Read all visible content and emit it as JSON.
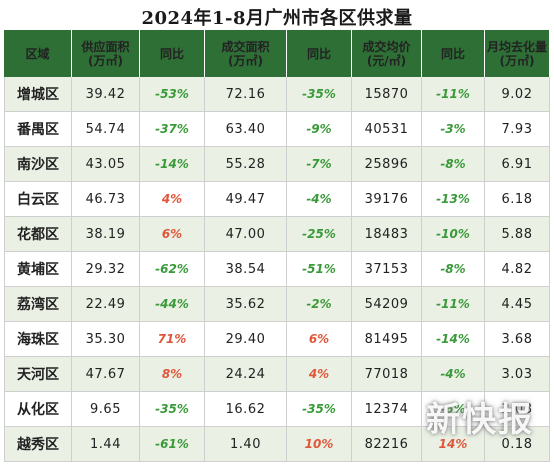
{
  "title": "2024年1-8月广州市各区供求量",
  "headers": [
    "区域",
    "供应面积\n(万㎡)",
    "同比",
    "成交面积\n(万㎡)",
    "同比",
    "成交均价\n(元/㎡)",
    "同比",
    "月均去化量\n(万㎡)"
  ],
  "rows": [
    {
      "district": "增城区",
      "supply": "39.42",
      "supply_yoy": "-53%",
      "deal": "72.16",
      "deal_yoy": "-35%",
      "price": "15870",
      "price_yoy": "-11%",
      "absorb": "9.02"
    },
    {
      "district": "番禺区",
      "supply": "54.74",
      "supply_yoy": "-37%",
      "deal": "63.40",
      "deal_yoy": "-9%",
      "price": "40531",
      "price_yoy": "-3%",
      "absorb": "7.93"
    },
    {
      "district": "南沙区",
      "supply": "43.05",
      "supply_yoy": "-14%",
      "deal": "55.28",
      "deal_yoy": "-7%",
      "price": "25896",
      "price_yoy": "-8%",
      "absorb": "6.91"
    },
    {
      "district": "白云区",
      "supply": "46.73",
      "supply_yoy": "4%",
      "deal": "49.47",
      "deal_yoy": "-4%",
      "price": "39176",
      "price_yoy": "-13%",
      "absorb": "6.18"
    },
    {
      "district": "花都区",
      "supply": "38.19",
      "supply_yoy": "6%",
      "deal": "47.00",
      "deal_yoy": "-25%",
      "price": "18483",
      "price_yoy": "-10%",
      "absorb": "5.88"
    },
    {
      "district": "黄埔区",
      "supply": "29.32",
      "supply_yoy": "-62%",
      "deal": "38.54",
      "deal_yoy": "-51%",
      "price": "37153",
      "price_yoy": "-8%",
      "absorb": "4.82"
    },
    {
      "district": "荔湾区",
      "supply": "22.49",
      "supply_yoy": "-44%",
      "deal": "35.62",
      "deal_yoy": "-2%",
      "price": "54209",
      "price_yoy": "-11%",
      "absorb": "4.45"
    },
    {
      "district": "海珠区",
      "supply": "35.30",
      "supply_yoy": "71%",
      "deal": "29.40",
      "deal_yoy": "6%",
      "price": "81495",
      "price_yoy": "-14%",
      "absorb": "3.68"
    },
    {
      "district": "天河区",
      "supply": "47.67",
      "supply_yoy": "8%",
      "deal": "24.24",
      "deal_yoy": "4%",
      "price": "77018",
      "price_yoy": "-4%",
      "absorb": "3.03"
    },
    {
      "district": "从化区",
      "supply": "9.65",
      "supply_yoy": "-35%",
      "deal": "16.62",
      "deal_yoy": "-35%",
      "price": "12374",
      "price_yoy": "-6%",
      "absorb": "2.08"
    },
    {
      "district": "越秀区",
      "supply": "1.44",
      "supply_yoy": "-61%",
      "deal": "1.40",
      "deal_yoy": "10%",
      "price": "82216",
      "price_yoy": "14%",
      "absorb": "0.18"
    }
  ],
  "colors": {
    "header_bg": "#2e6f36",
    "negative": "#3a9a3a",
    "positive": "#e0563a",
    "stripe": "#eaf1e4"
  },
  "watermark": "新快报"
}
